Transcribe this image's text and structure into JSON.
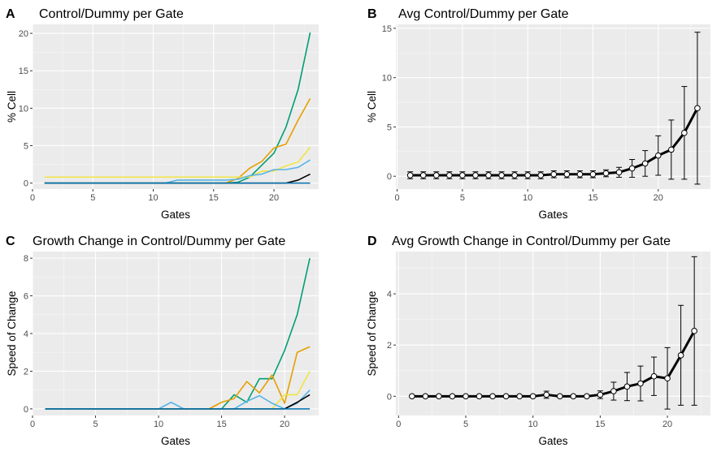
{
  "chart_data": [
    {
      "tag": "A",
      "type": "line",
      "title": "Control/Dummy per Gate",
      "xlabel": "Gates",
      "ylabel": "% Cell",
      "xlim": [
        0,
        23.7
      ],
      "ylim": [
        -0.8,
        21.2
      ],
      "xticks": [
        0,
        5,
        10,
        15,
        20
      ],
      "yticks": [
        0,
        5,
        10,
        15,
        20
      ],
      "grid": true,
      "series": [
        {
          "color": "#009E73",
          "x": [
            1,
            2,
            3,
            4,
            5,
            6,
            7,
            8,
            9,
            10,
            11,
            12,
            13,
            14,
            15,
            16,
            17,
            18,
            19,
            20,
            21,
            22,
            23
          ],
          "y": [
            0,
            0,
            0,
            0,
            0,
            0,
            0,
            0,
            0,
            0,
            0,
            0,
            0,
            0,
            0,
            0,
            0.1,
            0.8,
            2.4,
            4.0,
            7.5,
            12.5,
            20.1
          ]
        },
        {
          "color": "#E69F00",
          "x": [
            1,
            2,
            3,
            4,
            5,
            6,
            7,
            8,
            9,
            10,
            11,
            12,
            13,
            14,
            15,
            16,
            17,
            18,
            19,
            20,
            21,
            22,
            23
          ],
          "y": [
            0,
            0,
            0,
            0,
            0,
            0,
            0,
            0,
            0,
            0,
            0,
            0,
            0,
            0,
            0,
            0,
            0.6,
            2.0,
            2.9,
            4.7,
            5.2,
            8.4,
            11.3
          ]
        },
        {
          "color": "#F0E442",
          "x": [
            1,
            2,
            3,
            4,
            5,
            6,
            7,
            8,
            9,
            10,
            11,
            12,
            13,
            14,
            15,
            16,
            17,
            18,
            19,
            20,
            21,
            22,
            23
          ],
          "y": [
            0.8,
            0.8,
            0.8,
            0.8,
            0.8,
            0.8,
            0.8,
            0.8,
            0.8,
            0.8,
            0.8,
            0.8,
            0.8,
            0.8,
            0.8,
            0.8,
            0.8,
            0.8,
            1.6,
            1.6,
            2.3,
            2.8,
            4.8
          ]
        },
        {
          "color": "#56B4E9",
          "x": [
            1,
            2,
            3,
            4,
            5,
            6,
            7,
            8,
            9,
            10,
            11,
            12,
            13,
            14,
            15,
            16,
            17,
            18,
            19,
            20,
            21,
            22,
            23
          ],
          "y": [
            0,
            0,
            0,
            0,
            0,
            0,
            0,
            0,
            0,
            0,
            0,
            0.4,
            0.4,
            0.4,
            0.4,
            0.4,
            0.5,
            1.0,
            1.2,
            1.8,
            1.8,
            2.1,
            3.1
          ]
        },
        {
          "color": "#000000",
          "x": [
            1,
            2,
            3,
            4,
            5,
            6,
            7,
            8,
            9,
            10,
            11,
            12,
            13,
            14,
            15,
            16,
            17,
            18,
            19,
            20,
            21,
            22,
            23
          ],
          "y": [
            0,
            0,
            0,
            0,
            0,
            0,
            0,
            0,
            0,
            0,
            0,
            0,
            0,
            0,
            0,
            0,
            0,
            0,
            0,
            0,
            0,
            0.4,
            1.2
          ]
        },
        {
          "color": "#0072B2",
          "x": [
            1,
            23
          ],
          "y": [
            0,
            0
          ]
        }
      ]
    },
    {
      "tag": "B",
      "type": "line",
      "title": "Avg Control/Dummy per Gate",
      "xlabel": "Gates",
      "ylabel": "% Cell",
      "xlim": [
        -0.1,
        24.0
      ],
      "ylim": [
        -1.3,
        15.4
      ],
      "xticks": [
        0,
        5,
        10,
        15,
        20
      ],
      "yticks": [
        0,
        5,
        10,
        15
      ],
      "grid": true,
      "errorbars": true,
      "x": [
        1,
        2,
        3,
        4,
        5,
        6,
        7,
        8,
        9,
        10,
        11,
        12,
        13,
        14,
        15,
        16,
        17,
        18,
        19,
        20,
        21,
        22,
        23
      ],
      "mean": [
        0.1,
        0.1,
        0.1,
        0.1,
        0.1,
        0.1,
        0.1,
        0.1,
        0.1,
        0.1,
        0.1,
        0.2,
        0.2,
        0.2,
        0.2,
        0.3,
        0.4,
        0.8,
        1.3,
        2.1,
        2.7,
        4.4,
        6.9
      ],
      "err": [
        0.35,
        0.35,
        0.35,
        0.35,
        0.35,
        0.35,
        0.35,
        0.35,
        0.35,
        0.35,
        0.35,
        0.35,
        0.35,
        0.35,
        0.35,
        0.35,
        0.5,
        0.9,
        1.3,
        2.0,
        3.0,
        4.7,
        7.7
      ]
    },
    {
      "tag": "C",
      "type": "line",
      "title": "Growth Change in Control/Dummy per Gate",
      "xlabel": "Gates",
      "ylabel": "Speed of Change",
      "xlim": [
        0,
        22.7
      ],
      "ylim": [
        -0.35,
        8.35
      ],
      "xticks": [
        0,
        5,
        10,
        15,
        20
      ],
      "yticks": [
        0,
        2,
        4,
        6,
        8
      ],
      "grid": true,
      "series": [
        {
          "color": "#009E73",
          "x": [
            1,
            2,
            3,
            4,
            5,
            6,
            7,
            8,
            9,
            10,
            11,
            12,
            13,
            14,
            15,
            16,
            17,
            18,
            19,
            20,
            21,
            22
          ],
          "y": [
            0,
            0,
            0,
            0,
            0,
            0,
            0,
            0,
            0,
            0,
            0,
            0,
            0,
            0,
            0,
            0.75,
            0.35,
            1.6,
            1.6,
            3.1,
            5.0,
            8.0
          ]
        },
        {
          "color": "#E69F00",
          "x": [
            1,
            2,
            3,
            4,
            5,
            6,
            7,
            8,
            9,
            10,
            11,
            12,
            13,
            14,
            15,
            16,
            17,
            18,
            19,
            20,
            21,
            22
          ],
          "y": [
            0,
            0,
            0,
            0,
            0,
            0,
            0,
            0,
            0,
            0,
            0,
            0,
            0,
            0,
            0.35,
            0.55,
            1.45,
            0.85,
            1.8,
            0.3,
            3.0,
            3.3
          ]
        },
        {
          "color": "#F0E442",
          "x": [
            1,
            2,
            3,
            4,
            5,
            6,
            7,
            8,
            9,
            10,
            11,
            12,
            13,
            14,
            15,
            16,
            17,
            18,
            19,
            20,
            21,
            22
          ],
          "y": [
            0,
            0,
            0,
            0,
            0,
            0,
            0,
            0,
            0,
            0,
            0,
            0,
            0,
            0,
            0,
            0,
            0,
            0,
            0,
            0.75,
            0.75,
            2.0
          ]
        },
        {
          "color": "#56B4E9",
          "x": [
            1,
            2,
            3,
            4,
            5,
            6,
            7,
            8,
            9,
            10,
            11,
            12,
            13,
            14,
            15,
            16,
            17,
            18,
            19,
            20,
            21,
            22
          ],
          "y": [
            0,
            0,
            0,
            0,
            0,
            0,
            0,
            0,
            0,
            0,
            0.35,
            0,
            0,
            0,
            0,
            0,
            0.4,
            0.7,
            0.3,
            0,
            0.3,
            1.0
          ]
        },
        {
          "color": "#000000",
          "x": [
            1,
            2,
            3,
            4,
            5,
            6,
            7,
            8,
            9,
            10,
            11,
            12,
            13,
            14,
            15,
            16,
            17,
            18,
            19,
            20,
            21,
            22
          ],
          "y": [
            0,
            0,
            0,
            0,
            0,
            0,
            0,
            0,
            0,
            0,
            0,
            0,
            0,
            0,
            0,
            0,
            0,
            0,
            0,
            0,
            0.35,
            0.75
          ]
        },
        {
          "color": "#0072B2",
          "x": [
            1,
            22
          ],
          "y": [
            0,
            0
          ]
        }
      ]
    },
    {
      "tag": "D",
      "type": "line",
      "title": "Avg Growth Change in Control/Dummy per Gate",
      "xlabel": "Gates",
      "ylabel": "Speed of Change",
      "xlim": [
        -0.2,
        23.2
      ],
      "ylim": [
        -0.75,
        5.65
      ],
      "xticks": [
        0,
        5,
        10,
        15,
        20
      ],
      "yticks": [
        0,
        2,
        4
      ],
      "grid": true,
      "errorbars": true,
      "x": [
        1,
        2,
        3,
        4,
        5,
        6,
        7,
        8,
        9,
        10,
        11,
        12,
        13,
        14,
        15,
        16,
        17,
        18,
        19,
        20,
        21,
        22
      ],
      "mean": [
        0,
        0,
        0,
        0,
        0,
        0,
        0,
        0,
        0,
        0,
        0.06,
        0,
        0,
        0,
        0.06,
        0.2,
        0.38,
        0.5,
        0.78,
        0.7,
        1.6,
        2.55
      ],
      "err": [
        0,
        0,
        0,
        0,
        0,
        0,
        0,
        0,
        0,
        0,
        0.14,
        0,
        0,
        0,
        0.15,
        0.35,
        0.55,
        0.68,
        0.75,
        1.2,
        1.95,
        2.9
      ]
    }
  ]
}
